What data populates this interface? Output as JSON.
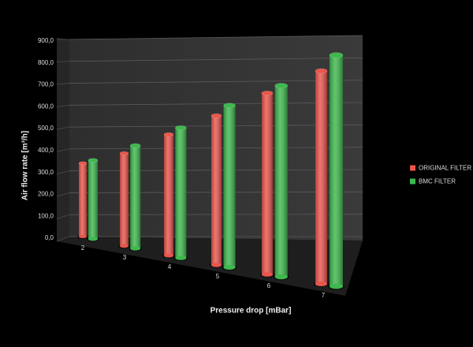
{
  "chart_data": {
    "type": "bar3d",
    "y_label": "Air flow rate [m³/h]",
    "x_label": "Pressure drop [mBar]",
    "categories": [
      "2",
      "3",
      "4",
      "5",
      "6",
      "7"
    ],
    "series": [
      {
        "name": "ORIGINAL FILTER",
        "color": "#e9564c",
        "values": [
          350,
          415,
          510,
          595,
          685,
          765
        ]
      },
      {
        "name": "BMC FILTER",
        "color": "#3fb84e",
        "values": [
          375,
          460,
          548,
          645,
          722,
          830
        ]
      }
    ],
    "ylim": [
      0,
      900
    ],
    "yticks": [
      {
        "value": 0,
        "label": "0,0"
      },
      {
        "value": 100,
        "label": "100,0"
      },
      {
        "value": 200,
        "label": "200,0"
      },
      {
        "value": 300,
        "label": "300,0"
      },
      {
        "value": 400,
        "label": "400,0"
      },
      {
        "value": 500,
        "label": "500,0"
      },
      {
        "value": 600,
        "label": "600,0"
      },
      {
        "value": 700,
        "label": "700,0"
      },
      {
        "value": 800,
        "label": "800,0"
      },
      {
        "value": 900,
        "label": "900,0"
      }
    ],
    "grid": true,
    "legend": "right"
  }
}
